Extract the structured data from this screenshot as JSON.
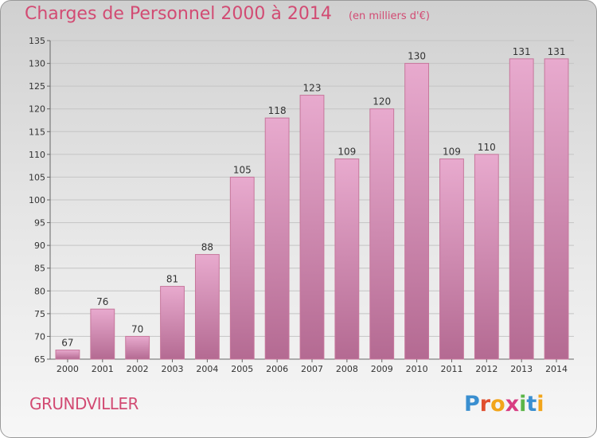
{
  "header": {
    "title": "Charges de Personnel 2000 à 2014",
    "unit": "(en milliers d'€)"
  },
  "footer": {
    "place": "GRUNDVILLER",
    "logo_text": "Proxiti"
  },
  "colors": {
    "title": "#d24b73",
    "bar_top": "#e8aace",
    "bar_bottom": "#b46a92",
    "bar_stroke": "#c7779c"
  },
  "chart_data": {
    "type": "bar",
    "title": "Charges de Personnel 2000 à 2014",
    "subtitle": "(en milliers d'€)",
    "categories": [
      "2000",
      "2001",
      "2002",
      "2003",
      "2004",
      "2005",
      "2006",
      "2007",
      "2008",
      "2009",
      "2010",
      "2011",
      "2012",
      "2013",
      "2014"
    ],
    "values": [
      67,
      76,
      70,
      81,
      88,
      105,
      118,
      123,
      109,
      120,
      130,
      109,
      110,
      131,
      131
    ],
    "ylim": [
      65,
      135
    ],
    "yticks": [
      65,
      70,
      75,
      80,
      85,
      90,
      95,
      100,
      105,
      110,
      115,
      120,
      125,
      130,
      135
    ],
    "grid": true,
    "data_labels": true
  }
}
